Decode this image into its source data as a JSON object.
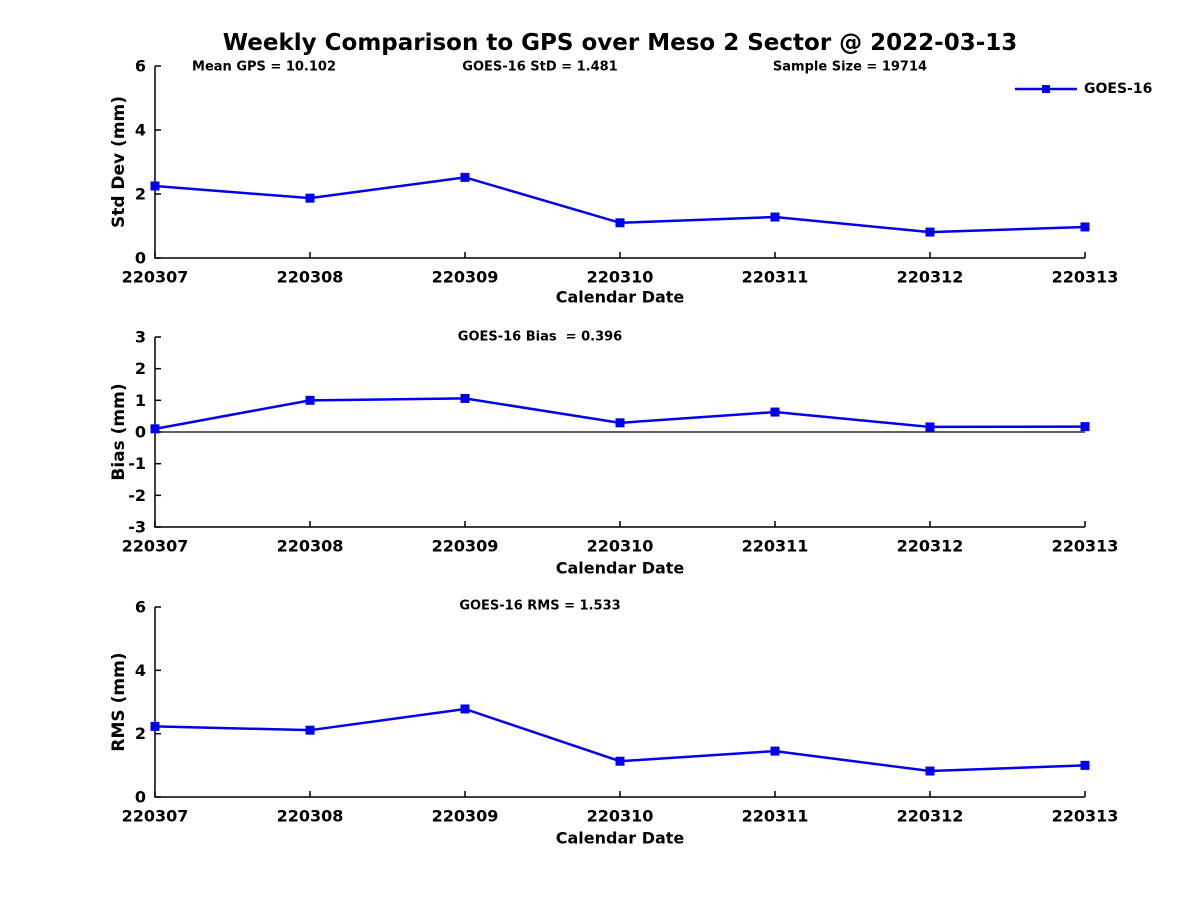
{
  "title": "Weekly Comparison to GPS over Meso 2 Sector @ 2022-03-13",
  "chart_data": {
    "type": "line",
    "x_categories": [
      "220307",
      "220308",
      "220309",
      "220310",
      "220311",
      "220312",
      "220313"
    ],
    "xlabel": "Calendar Date",
    "legend": {
      "label": "GOES-16",
      "position": "top-right",
      "marker": "filled-square"
    },
    "colors": {
      "line": "#0000ee",
      "axis": "#000000",
      "text": "#000000"
    },
    "grid": false,
    "subplots": [
      {
        "id": "std-dev",
        "ylabel": "Std Dev (mm)",
        "ylim": [
          0,
          6
        ],
        "yticks": [
          0,
          2,
          4,
          6
        ],
        "zero_line": false,
        "annotations": [
          "Mean GPS = 10.102",
          "GOES-16 StD = 1.481",
          "Sample Size = 19714"
        ],
        "series": [
          {
            "name": "GOES-16",
            "values": [
              2.25,
              1.87,
              2.52,
              1.1,
              1.28,
              0.81,
              0.97
            ]
          }
        ]
      },
      {
        "id": "bias",
        "ylabel": "Bias (mm)",
        "ylim": [
          -3,
          3
        ],
        "yticks": [
          3,
          2,
          1,
          0,
          -1,
          -2,
          -3
        ],
        "zero_line": true,
        "annotations": [
          "GOES-16 Bias  = 0.396"
        ],
        "series": [
          {
            "name": "GOES-16",
            "values": [
              0.1,
              1.0,
              1.06,
              0.29,
              0.63,
              0.16,
              0.17
            ]
          }
        ]
      },
      {
        "id": "rms",
        "ylabel": "RMS (mm)",
        "ylim": [
          0,
          6
        ],
        "yticks": [
          0,
          2,
          4,
          6
        ],
        "zero_line": false,
        "annotations": [
          "GOES-16 RMS = 1.533"
        ],
        "series": [
          {
            "name": "GOES-16",
            "values": [
              2.23,
              2.11,
              2.78,
              1.13,
              1.45,
              0.82,
              1.0
            ]
          }
        ]
      }
    ]
  }
}
